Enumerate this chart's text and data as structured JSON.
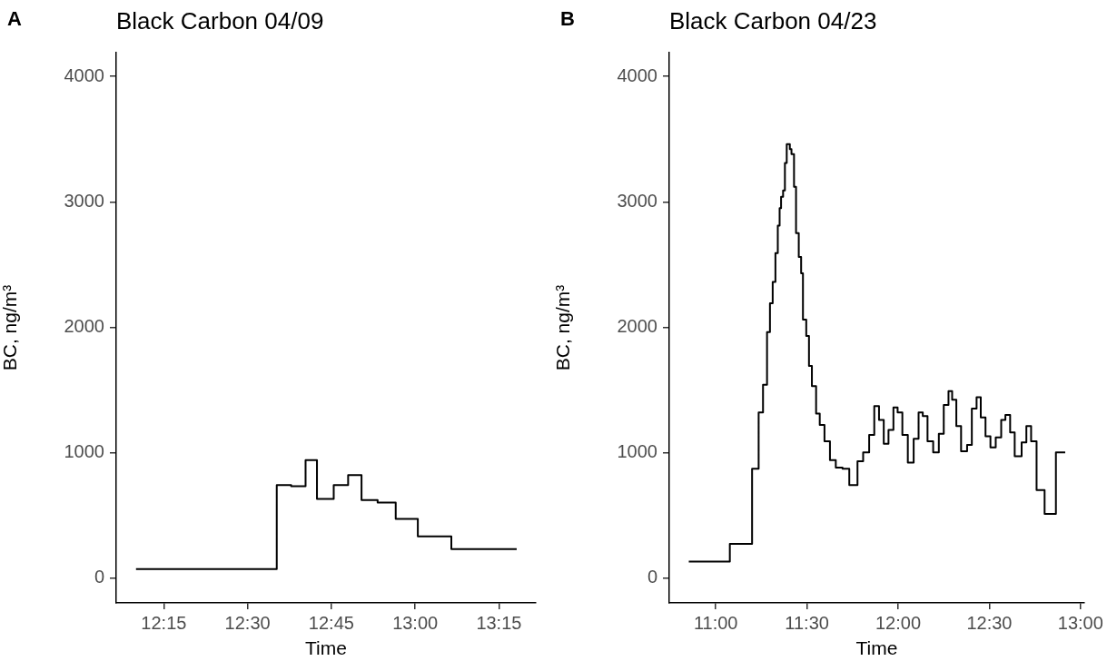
{
  "chart_data": [
    {
      "type": "step",
      "title": "Black Carbon 04/09",
      "annotations": [
        "A"
      ],
      "xlabel": "Time",
      "ylabel": "BC, ng/m³",
      "color": "#000000",
      "x": [
        12.167,
        12.587,
        12.63,
        12.673,
        12.707,
        12.757,
        12.8,
        12.84,
        12.888,
        12.942,
        13.008,
        13.108,
        13.303
      ],
      "values": [
        70,
        740,
        730,
        940,
        630,
        740,
        820,
        620,
        600,
        470,
        330,
        230,
        230
      ],
      "xlim": [
        12.108,
        13.36
      ],
      "ylim": [
        -200,
        4190
      ],
      "xticks": [
        {
          "value": 12.25,
          "label": "12:15"
        },
        {
          "value": 12.5,
          "label": "12:30"
        },
        {
          "value": 12.75,
          "label": "12:45"
        },
        {
          "value": 13,
          "label": "13:00"
        },
        {
          "value": 13.25,
          "label": "13:15"
        }
      ],
      "yticks": [
        0,
        1000,
        2000,
        3000,
        4000
      ]
    },
    {
      "type": "step",
      "title": "Black Carbon 04/23",
      "annotations": [
        "B"
      ],
      "xlabel": "Time",
      "ylabel": "BC, ng/m³",
      "color": "#000000",
      "x": [
        10.852,
        11.077,
        11.199,
        11.235,
        11.259,
        11.281,
        11.297,
        11.312,
        11.327,
        11.34,
        11.35,
        11.358,
        11.369,
        11.379,
        11.389,
        11.406,
        11.415,
        11.429,
        11.44,
        11.455,
        11.468,
        11.478,
        11.496,
        11.511,
        11.527,
        11.55,
        11.57,
        11.596,
        11.626,
        11.658,
        11.695,
        11.732,
        11.777,
        11.808,
        11.841,
        11.869,
        11.895,
        11.921,
        11.947,
        11.974,
        11.997,
        12.023,
        12.053,
        12.085,
        12.112,
        12.135,
        12.161,
        12.192,
        12.223,
        12.25,
        12.276,
        12.296,
        12.319,
        12.345,
        12.378,
        12.404,
        12.43,
        12.453,
        12.479,
        12.506,
        12.535,
        12.565,
        12.588,
        12.614,
        12.639,
        12.677,
        12.703,
        12.729,
        12.759,
        12.803,
        12.865,
        12.916
      ],
      "values": [
        130,
        270,
        870,
        1320,
        1540,
        1960,
        2190,
        2360,
        2590,
        2810,
        2950,
        3040,
        3090,
        3310,
        3460,
        3420,
        3380,
        3120,
        2750,
        2560,
        2430,
        2060,
        1930,
        1690,
        1530,
        1310,
        1220,
        1090,
        940,
        880,
        870,
        740,
        930,
        1000,
        1140,
        1370,
        1260,
        1070,
        1180,
        1360,
        1320,
        1140,
        920,
        1110,
        1320,
        1290,
        1090,
        1000,
        1150,
        1380,
        1490,
        1420,
        1210,
        1010,
        1060,
        1350,
        1440,
        1280,
        1130,
        1040,
        1120,
        1260,
        1300,
        1160,
        970,
        1080,
        1210,
        1090,
        700,
        510,
        1000,
        1000
      ],
      "xlim": [
        10.745,
        13.02
      ],
      "ylim": [
        -200,
        4190
      ],
      "xticks": [
        {
          "value": 11,
          "label": "11:00"
        },
        {
          "value": 11.5,
          "label": "11:30"
        },
        {
          "value": 12,
          "label": "12:00"
        },
        {
          "value": 12.5,
          "label": "12:30"
        },
        {
          "value": 13,
          "label": "13:00"
        }
      ],
      "yticks": [
        0,
        1000,
        2000,
        3000,
        4000
      ]
    }
  ]
}
